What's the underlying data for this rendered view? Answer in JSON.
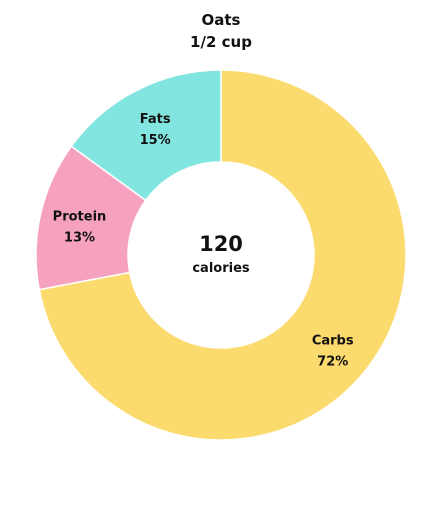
{
  "chart_data": {
    "type": "pie",
    "donut": true,
    "title": "Oats",
    "subtitle": "1/2 cup",
    "center": {
      "value": "120",
      "unit": "calories"
    },
    "slices": [
      {
        "label": "Carbs",
        "value": 72,
        "value_label": "72%",
        "color": "#fcdb6e"
      },
      {
        "label": "Protein",
        "value": 13,
        "value_label": "13%",
        "color": "#f6a1c0"
      },
      {
        "label": "Fats",
        "value": 15,
        "value_label": "15%",
        "color": "#83e5df"
      }
    ]
  }
}
